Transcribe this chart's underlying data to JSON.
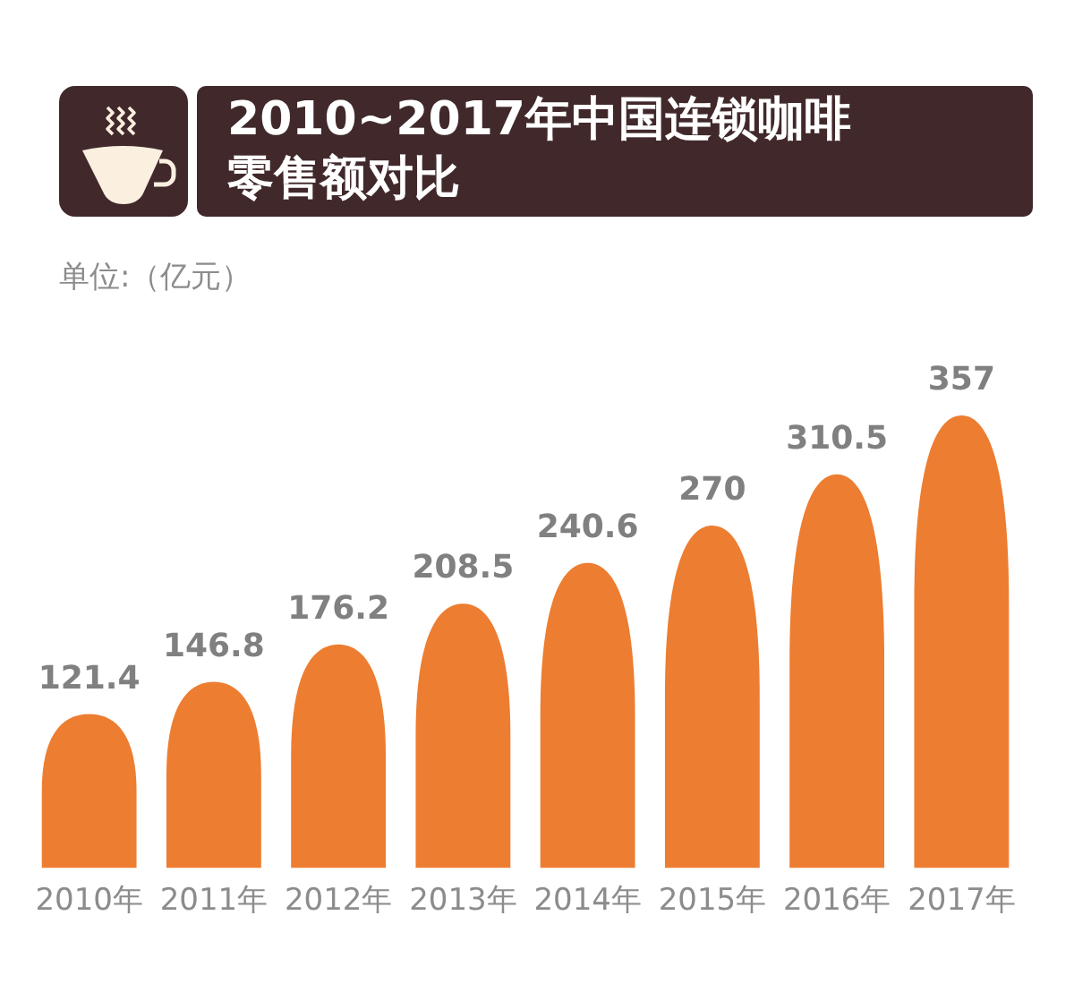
{
  "chart_data": {
    "type": "bar",
    "title": "2010~2017年中国连锁咖啡零售额对比",
    "subtitle": "单位:（亿元）",
    "categories": [
      "2010年",
      "2011年",
      "2012年",
      "2013年",
      "2014年",
      "2015年",
      "2016年",
      "2017年"
    ],
    "values": [
      121.4,
      146.8,
      176.2,
      208.5,
      240.6,
      270,
      310.5,
      357
    ],
    "color": "#ed7d31",
    "data_labels": true
  }
}
